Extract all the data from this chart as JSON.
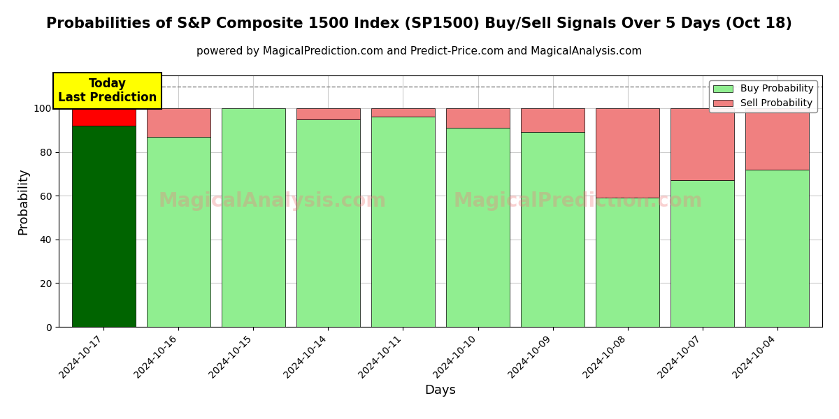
{
  "title": "Probabilities of S&P Composite 1500 Index (SP1500) Buy/Sell Signals Over 5 Days (Oct 18)",
  "subtitle": "powered by MagicalPrediction.com and Predict-Price.com and MagicalAnalysis.com",
  "xlabel": "Days",
  "ylabel": "Probability",
  "categories": [
    "2024-10-17",
    "2024-10-16",
    "2024-10-15",
    "2024-10-14",
    "2024-10-11",
    "2024-10-10",
    "2024-10-09",
    "2024-10-08",
    "2024-10-07",
    "2024-10-04"
  ],
  "buy_values": [
    92,
    87,
    100,
    95,
    96,
    91,
    89,
    59,
    67,
    72
  ],
  "sell_values": [
    8,
    13,
    0,
    5,
    4,
    9,
    11,
    41,
    33,
    28
  ],
  "today_index": 0,
  "today_buy_color": "#006400",
  "today_sell_color": "#FF0000",
  "normal_buy_color": "#90EE90",
  "normal_sell_color": "#F08080",
  "today_label_bg": "#FFFF00",
  "today_label_text": "Today\nLast Prediction",
  "dashed_line_y": 110,
  "ylim": [
    0,
    115
  ],
  "yticks": [
    0,
    20,
    40,
    60,
    80,
    100
  ],
  "legend_buy_label": "Buy Probability",
  "legend_sell_label": "Sell Probability",
  "watermark_texts": [
    "MagicalAnalysis.com",
    "MagicalPrediction.com"
  ],
  "watermark_color": "#F08080",
  "watermark_alpha": 0.35,
  "title_fontsize": 15,
  "subtitle_fontsize": 11,
  "axis_label_fontsize": 13,
  "tick_fontsize": 10,
  "bar_edge_color": "black",
  "bar_edge_width": 0.5,
  "bar_width": 0.85,
  "grid_color": "#cccccc",
  "background_color": "#ffffff"
}
